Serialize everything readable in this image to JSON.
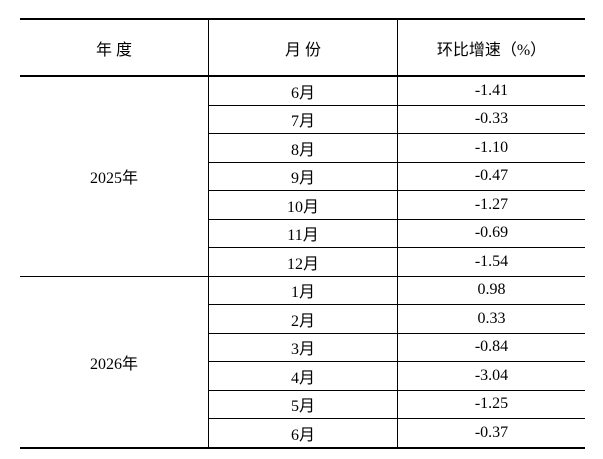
{
  "table": {
    "header": [
      "年 度",
      "月 份",
      "环比增速（%）"
    ],
    "groups": [
      {
        "year": "2025年",
        "rows": [
          [
            "6月",
            "-1.41"
          ],
          [
            "7月",
            "-0.33"
          ],
          [
            "8月",
            "-1.10"
          ],
          [
            "9月",
            "-0.47"
          ],
          [
            "10月",
            "-1.27"
          ],
          [
            "11月",
            "-0.69"
          ],
          [
            "12月",
            "-1.54"
          ]
        ]
      },
      {
        "year": "2026年",
        "rows": [
          [
            "1月",
            "0.98"
          ],
          [
            "2月",
            "0.33"
          ],
          [
            "3月",
            "-0.84"
          ],
          [
            "4月",
            "-3.04"
          ],
          [
            "5月",
            "-1.25"
          ],
          [
            "6月",
            "-0.37"
          ]
        ]
      }
    ]
  }
}
